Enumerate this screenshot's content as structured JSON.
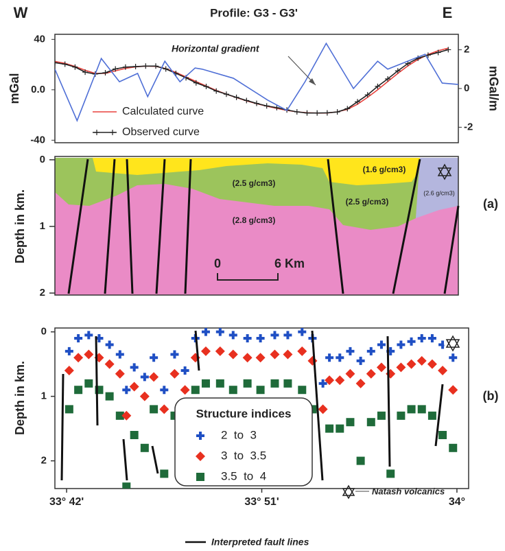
{
  "chart_data": [
    {
      "type": "line",
      "title": "Profile: G3 - G3'",
      "left_label": "W",
      "right_label": "E",
      "ylabel": "mGal",
      "y2label": "mGal/m",
      "xlim": [
        0,
        40
      ],
      "ylim": [
        -42,
        44
      ],
      "yticks": [
        -40,
        {
          "value": 0,
          "label": "0.0"
        },
        40
      ],
      "y2lim": [
        -2.8,
        2.8
      ],
      "y2ticks": [
        -2,
        0,
        2
      ],
      "x": [
        0,
        1,
        2,
        3,
        4,
        5,
        6,
        7,
        8,
        9,
        10,
        11,
        12,
        13,
        14,
        15,
        16,
        17,
        18,
        19,
        20,
        21,
        22,
        23,
        24,
        25,
        26,
        27,
        28,
        29,
        30,
        31,
        32,
        33,
        34,
        35,
        36,
        37,
        38,
        39
      ],
      "series": [
        {
          "name": "Calculated curve",
          "color": "#e8413c",
          "values": [
            22.5,
            21,
            18.5,
            15.5,
            13,
            13,
            15,
            17,
            18.2,
            18.8,
            18.6,
            16.8,
            13.8,
            10.2,
            6.5,
            3,
            -0.5,
            -3.5,
            -6.2,
            -8.8,
            -11,
            -13,
            -14.8,
            -16.3,
            -17.5,
            -18.2,
            -18.5,
            -18.4,
            -17.5,
            -15.5,
            -11.5,
            -6,
            0,
            6.5,
            13,
            19,
            24,
            28,
            31,
            33
          ]
        },
        {
          "name": "Observed curve",
          "color": "#222222",
          "marker": "plus",
          "values": [
            21.5,
            20.3,
            18,
            14,
            12.5,
            13.5,
            16.5,
            18,
            18.4,
            18.8,
            18.8,
            16.5,
            13,
            9.5,
            5.5,
            2.6,
            -1,
            -3.5,
            -6,
            -8.5,
            -10.8,
            -12.8,
            -14.2,
            -16,
            -17.5,
            -18.4,
            -18.4,
            -18.3,
            -17.6,
            -15,
            -9.5,
            -4,
            2.7,
            8.6,
            15,
            20.8,
            25,
            27.5,
            29.6,
            31.8
          ]
        },
        {
          "name": "Horizontal gradient",
          "color": "#4f6fd6",
          "axis": "y2",
          "x": [
            0,
            2.2,
            4.6,
            6.4,
            8.2,
            9.2,
            10.9,
            12.4,
            13.9,
            14.6,
            17.7,
            21.1,
            23,
            24.8,
            26.9,
            29.6,
            32,
            33,
            36.7,
            38.4,
            40
          ],
          "values": [
            1,
            -1.66,
            1.55,
            0.35,
            0.78,
            -0.42,
            1.41,
            0.35,
            1.06,
            1,
            0.53,
            -0.6,
            -1.13,
            0.35,
            2.33,
            0,
            1.41,
            1,
            1.77,
            0.28,
            0.21
          ]
        }
      ],
      "legend": "lower left"
    },
    {
      "type": "cross-section",
      "panel_label": "(a)",
      "ylabel": "Depth in km.",
      "ylim": [
        -0.05,
        2.03
      ],
      "yticks": [
        0,
        1,
        2
      ],
      "invert_y": true,
      "layers": [
        {
          "name": "(1.6 g/cm3)",
          "color": "#ffe51c"
        },
        {
          "name": "(2.5 g/cm3)",
          "color": "#9cc45c"
        },
        {
          "name": "(2.5 g/cm3)",
          "color": "#9cc45c"
        },
        {
          "name": "(2.8 g/cm3)",
          "color": "#ea8bc6"
        },
        {
          "name": "(2.6 g/cm3)",
          "color": "#b4b6de"
        }
      ],
      "scale_bar": {
        "start": "0",
        "end": "6 Km"
      }
    },
    {
      "type": "scatter",
      "panel_label": "(b)",
      "ylabel": "Depth in km.",
      "xlim": [
        33.691,
        34.009
      ],
      "xticks": [
        {
          "value": 33.7,
          "label": "33° 42'"
        },
        {
          "value": 33.85,
          "label": "33° 51'"
        },
        {
          "value": 34,
          "label": "34°"
        }
      ],
      "ylim": [
        -0.06,
        2.43
      ],
      "yticks": [
        0,
        1,
        2
      ],
      "invert_y": true,
      "legend_title": "Structure indices",
      "x": [
        33.702,
        33.709,
        33.717,
        33.725,
        33.733,
        33.741,
        33.746,
        33.752,
        33.76,
        33.767,
        33.775,
        33.783,
        33.791,
        33.799,
        33.807,
        33.818,
        33.828,
        33.839,
        33.849,
        33.86,
        33.87,
        33.881,
        33.889,
        33.897,
        33.902,
        33.91,
        33.918,
        33.926,
        33.934,
        33.942,
        33.949,
        33.957,
        33.965,
        33.973,
        33.981,
        33.989,
        33.997
      ],
      "series": [
        {
          "name": "2  to  3",
          "color": "#1f4fc4",
          "marker": "plus",
          "values": [
            0.3,
            0.1,
            0.05,
            0.1,
            0.2,
            0.35,
            0.9,
            0.55,
            0.7,
            0.4,
            0.9,
            0.35,
            0.6,
            0.1,
            0,
            0,
            0.05,
            0.1,
            0.1,
            0.05,
            0.05,
            0,
            0.1,
            0.8,
            0.4,
            0.4,
            0.3,
            0.45,
            0.3,
            0.2,
            0.3,
            0.2,
            0.15,
            0.1,
            0.1,
            0.2,
            0.4
          ]
        },
        {
          "name": "3  to  3.5",
          "color": "#e8301f",
          "marker": "diamond",
          "values": [
            0.6,
            0.4,
            0.35,
            0.4,
            0.5,
            0.65,
            1.3,
            0.85,
            1,
            0.7,
            1.2,
            0.65,
            0.9,
            0.4,
            0.3,
            0.3,
            0.35,
            0.4,
            0.4,
            0.35,
            0.35,
            0.3,
            0.45,
            1.2,
            0.75,
            0.75,
            0.65,
            0.8,
            0.65,
            0.55,
            0.65,
            0.55,
            0.5,
            0.45,
            0.5,
            0.6,
            0.9
          ]
        },
        {
          "name": "3.5  to  4",
          "color": "#1f6b3a",
          "marker": "square",
          "values": [
            1.2,
            0.9,
            0.8,
            0.9,
            1,
            1.3,
            2.4,
            1.6,
            1.8,
            1.2,
            2.2,
            1.3,
            1.8,
            0.9,
            0.8,
            0.8,
            0.9,
            0.8,
            0.9,
            0.8,
            0.8,
            0.9,
            1.2,
            2.5,
            1.5,
            1.5,
            1.4,
            2,
            1.4,
            1.3,
            2.2,
            1.3,
            1.2,
            1.2,
            1.3,
            1.6,
            1.8
          ]
        }
      ],
      "annotation": "Natash volcanics",
      "footer": "Interpreted fault lines"
    }
  ]
}
